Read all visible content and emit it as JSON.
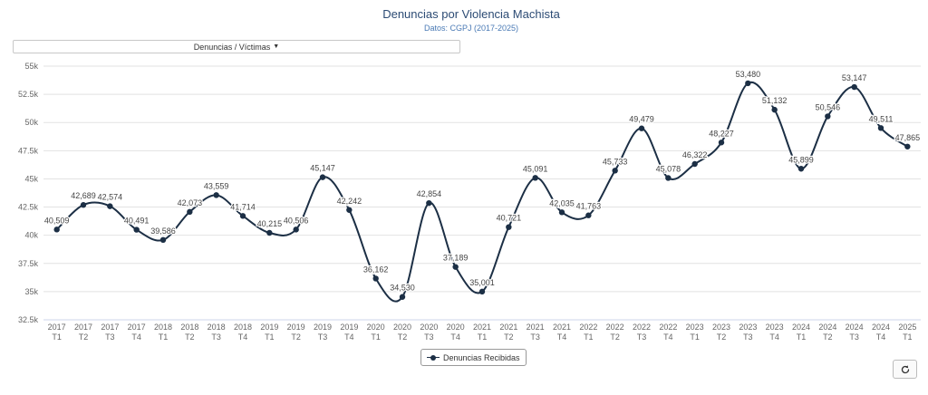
{
  "header": {
    "title": "Denuncias por Violencia Machista",
    "subtitle": "Datos: CGPJ (2017-2025)"
  },
  "controls": {
    "dropdown_label": "Denuncias / Víctimas",
    "refresh_icon": "refresh-icon"
  },
  "colors": {
    "series": "#1c2f45",
    "grid": "#e2e2e2",
    "axis_text": "#666666",
    "title": "#2c4b74",
    "subtitle": "#4a7ab5"
  },
  "chart_data": {
    "type": "line",
    "title": "Denuncias por Violencia Machista",
    "subtitle": "Datos: CGPJ (2017-2025)",
    "xlabel": "",
    "ylabel": "",
    "ylim": [
      32500,
      55000
    ],
    "y_ticks": [
      32500,
      35000,
      37500,
      40000,
      42500,
      45000,
      47500,
      50000,
      52500,
      55000
    ],
    "y_tick_labels": [
      "32.5k",
      "35k",
      "37.5k",
      "40k",
      "42.5k",
      "45k",
      "47.5k",
      "50k",
      "52.5k",
      "55k"
    ],
    "grid": true,
    "legend_position": "bottom-center",
    "categories": [
      [
        "2017",
        "T1"
      ],
      [
        "2017",
        "T2"
      ],
      [
        "2017",
        "T3"
      ],
      [
        "2017",
        "T4"
      ],
      [
        "2018",
        "T1"
      ],
      [
        "2018",
        "T2"
      ],
      [
        "2018",
        "T3"
      ],
      [
        "2018",
        "T4"
      ],
      [
        "2019",
        "T1"
      ],
      [
        "2019",
        "T2"
      ],
      [
        "2019",
        "T3"
      ],
      [
        "2019",
        "T4"
      ],
      [
        "2020",
        "T1"
      ],
      [
        "2020",
        "T2"
      ],
      [
        "2020",
        "T3"
      ],
      [
        "2020",
        "T4"
      ],
      [
        "2021",
        "T1"
      ],
      [
        "2021",
        "T2"
      ],
      [
        "2021",
        "T3"
      ],
      [
        "2021",
        "T4"
      ],
      [
        "2022",
        "T1"
      ],
      [
        "2022",
        "T2"
      ],
      [
        "2022",
        "T3"
      ],
      [
        "2022",
        "T4"
      ],
      [
        "2023",
        "T1"
      ],
      [
        "2023",
        "T2"
      ],
      [
        "2023",
        "T3"
      ],
      [
        "2023",
        "T4"
      ],
      [
        "2024",
        "T1"
      ],
      [
        "2024",
        "T2"
      ],
      [
        "2024",
        "T3"
      ],
      [
        "2024",
        "T4"
      ],
      [
        "2025",
        "T1"
      ]
    ],
    "series": [
      {
        "name": "Denuncias Recibidas",
        "values": [
          40509,
          42689,
          42574,
          40491,
          39586,
          42073,
          43559,
          41714,
          40215,
          40506,
          45147,
          42242,
          36162,
          34530,
          42854,
          37189,
          35001,
          40721,
          45091,
          42035,
          41763,
          45733,
          49479,
          45078,
          46322,
          48227,
          53480,
          51132,
          45899,
          50546,
          53147,
          49511,
          47865
        ],
        "labels": [
          "40,509",
          "42,689",
          "42,574",
          "40,491",
          "39,586",
          "42,073",
          "43,559",
          "41,714",
          "40,215",
          "40,506",
          "45,147",
          "42,242",
          "36,162",
          "34,530",
          "42,854",
          "37,189",
          "35,001",
          "40,721",
          "45,091",
          "42,035",
          "41,763",
          "45,733",
          "49,479",
          "45,078",
          "46,322",
          "48,227",
          "53,480",
          "51,132",
          "45,899",
          "50,546",
          "53,147",
          "49,511",
          "47,865"
        ]
      }
    ]
  }
}
